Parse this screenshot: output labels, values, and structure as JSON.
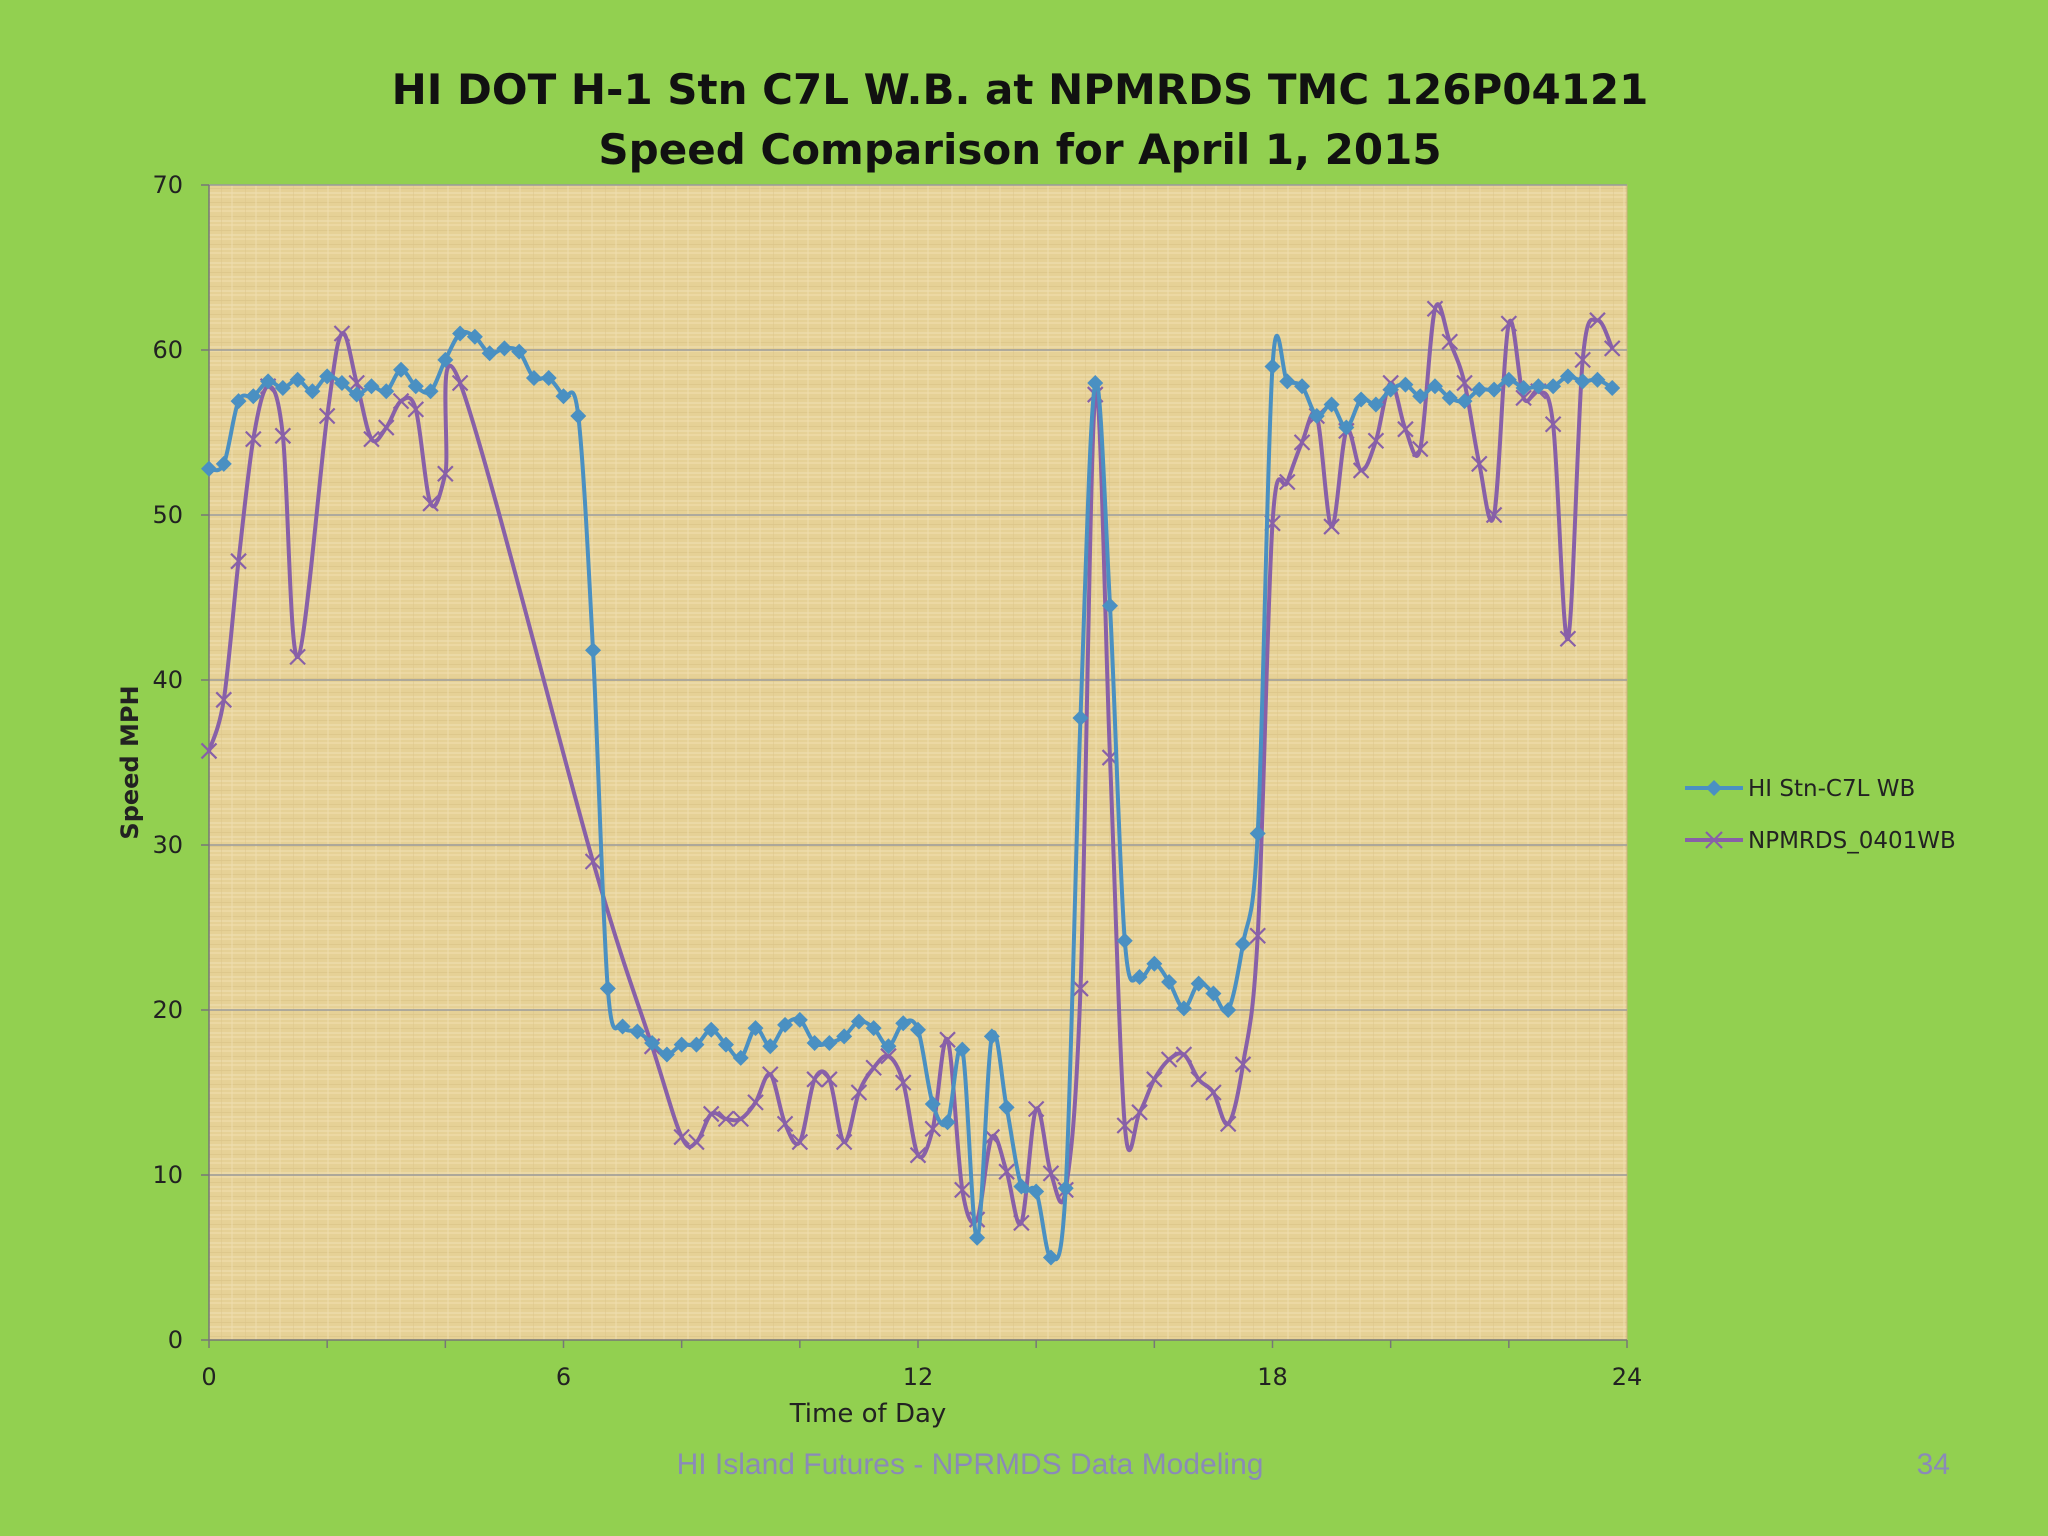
{
  "slide": {
    "footer": "HI Island Futures - NPRMDS Data Modeling",
    "page_number": "34"
  },
  "colors": {
    "background": "#92d050",
    "plot_area": "#e8d39c",
    "gridline": "#9a9a9a",
    "series_1": "#4a90c2",
    "series_2": "#8860a8"
  },
  "chart_data": {
    "type": "line",
    "title_lines": [
      "HI DOT H-1 Stn C7L W.B. at NPMRDS TMC 126P04121",
      "Speed Comparison for April 1, 2015"
    ],
    "xlabel": "Time of Day",
    "ylabel": "Speed MPH",
    "xlim": [
      0,
      24
    ],
    "ylim": [
      0,
      70
    ],
    "xticks": [
      0,
      6,
      12,
      18,
      24
    ],
    "yticks": [
      0,
      10,
      20,
      30,
      40,
      50,
      60,
      70
    ],
    "grid": "horizontal",
    "legend_position": "right",
    "series": [
      {
        "name": "HI Stn-C7L WB",
        "marker": "diamond",
        "points": [
          [
            0,
            52.8
          ],
          [
            0.25,
            53.1
          ],
          [
            0.5,
            56.9
          ],
          [
            0.75,
            57.2
          ],
          [
            1,
            58.1
          ],
          [
            1.25,
            57.7
          ],
          [
            1.5,
            58.2
          ],
          [
            1.75,
            57.5
          ],
          [
            2,
            58.4
          ],
          [
            2.25,
            58.0
          ],
          [
            2.5,
            57.3
          ],
          [
            2.75,
            57.8
          ],
          [
            3,
            57.5
          ],
          [
            3.25,
            58.8
          ],
          [
            3.5,
            57.8
          ],
          [
            3.75,
            57.5
          ],
          [
            4,
            59.4
          ],
          [
            4.25,
            61.0
          ],
          [
            4.5,
            60.8
          ],
          [
            4.75,
            59.8
          ],
          [
            5,
            60.1
          ],
          [
            5.25,
            59.9
          ],
          [
            5.5,
            58.3
          ],
          [
            5.75,
            58.3
          ],
          [
            6,
            57.2
          ],
          [
            6.25,
            56.0
          ],
          [
            6.5,
            41.8
          ],
          [
            6.75,
            21.3
          ],
          [
            7,
            19.0
          ],
          [
            7.25,
            18.7
          ],
          [
            7.5,
            18.0
          ],
          [
            7.75,
            17.3
          ],
          [
            8,
            17.9
          ],
          [
            8.25,
            17.9
          ],
          [
            8.5,
            18.8
          ],
          [
            8.75,
            17.9
          ],
          [
            9,
            17.1
          ],
          [
            9.25,
            18.9
          ],
          [
            9.5,
            17.8
          ],
          [
            9.75,
            19.1
          ],
          [
            10,
            19.4
          ],
          [
            10.25,
            18.0
          ],
          [
            10.5,
            18.0
          ],
          [
            10.75,
            18.4
          ],
          [
            11,
            19.3
          ],
          [
            11.25,
            18.9
          ],
          [
            11.5,
            17.8
          ],
          [
            11.75,
            19.2
          ],
          [
            12,
            18.8
          ],
          [
            12.25,
            14.3
          ],
          [
            12.5,
            13.2
          ],
          [
            12.75,
            17.6
          ],
          [
            13,
            6.2
          ],
          [
            13.25,
            18.4
          ],
          [
            13.5,
            14.1
          ],
          [
            13.75,
            9.3
          ],
          [
            14,
            9.0
          ],
          [
            14.25,
            5.0
          ],
          [
            14.5,
            9.2
          ],
          [
            14.75,
            37.7
          ],
          [
            15,
            58.0
          ],
          [
            15.25,
            44.5
          ],
          [
            15.5,
            24.2
          ],
          [
            15.75,
            22.0
          ],
          [
            16,
            22.8
          ],
          [
            16.25,
            21.7
          ],
          [
            16.5,
            20.1
          ],
          [
            16.75,
            21.6
          ],
          [
            17,
            21.0
          ],
          [
            17.25,
            20.0
          ],
          [
            17.5,
            24.0
          ],
          [
            17.75,
            30.7
          ],
          [
            18,
            59.0
          ],
          [
            18.25,
            58.1
          ],
          [
            18.5,
            57.8
          ],
          [
            18.75,
            56.0
          ],
          [
            19,
            56.7
          ],
          [
            19.25,
            55.3
          ],
          [
            19.5,
            57.0
          ],
          [
            19.75,
            56.7
          ],
          [
            20,
            57.6
          ],
          [
            20.25,
            57.9
          ],
          [
            20.5,
            57.2
          ],
          [
            20.75,
            57.8
          ],
          [
            21,
            57.1
          ],
          [
            21.25,
            56.9
          ],
          [
            21.5,
            57.6
          ],
          [
            21.75,
            57.6
          ],
          [
            22,
            58.2
          ],
          [
            22.25,
            57.7
          ],
          [
            22.5,
            57.8
          ],
          [
            22.75,
            57.8
          ],
          [
            23,
            58.4
          ],
          [
            23.25,
            58.1
          ],
          [
            23.5,
            58.2
          ],
          [
            23.75,
            57.7
          ]
        ]
      },
      {
        "name": "NPMRDS_0401WB",
        "marker": "x",
        "points": [
          [
            0,
            35.7
          ],
          [
            0.25,
            38.8
          ],
          [
            0.5,
            47.2
          ],
          [
            0.75,
            54.6
          ],
          [
            1,
            57.8
          ],
          [
            1.25,
            54.8
          ],
          [
            1.5,
            41.4
          ],
          [
            2,
            56.0
          ],
          [
            2.25,
            61.0
          ],
          [
            2.5,
            58.0
          ],
          [
            2.75,
            54.6
          ],
          [
            3,
            55.3
          ],
          [
            3.25,
            56.9
          ],
          [
            3.5,
            56.4
          ],
          [
            3.75,
            50.7
          ],
          [
            4,
            52.5
          ],
          [
            4.25,
            58.0
          ],
          [
            6.5,
            29.0
          ],
          [
            7.5,
            17.8
          ],
          [
            8,
            12.3
          ],
          [
            8.25,
            12.0
          ],
          [
            8.5,
            13.7
          ],
          [
            8.75,
            13.4
          ],
          [
            9,
            13.4
          ],
          [
            9.25,
            14.4
          ],
          [
            9.5,
            16.1
          ],
          [
            9.75,
            13.1
          ],
          [
            10,
            12.0
          ],
          [
            10.25,
            15.8
          ],
          [
            10.5,
            15.8
          ],
          [
            10.75,
            12.0
          ],
          [
            11,
            15.0
          ],
          [
            11.25,
            16.5
          ],
          [
            11.5,
            17.2
          ],
          [
            11.75,
            15.6
          ],
          [
            12,
            11.2
          ],
          [
            12.25,
            12.8
          ],
          [
            12.5,
            18.2
          ],
          [
            12.75,
            9.1
          ],
          [
            13,
            7.3
          ],
          [
            13.25,
            12.3
          ],
          [
            13.5,
            10.2
          ],
          [
            13.75,
            7.1
          ],
          [
            14,
            14.0
          ],
          [
            14.25,
            10.1
          ],
          [
            14.5,
            9.1
          ],
          [
            14.75,
            21.3
          ],
          [
            15,
            57.3
          ],
          [
            15.25,
            35.3
          ],
          [
            15.5,
            13.0
          ],
          [
            15.75,
            13.8
          ],
          [
            16,
            15.8
          ],
          [
            16.25,
            17.0
          ],
          [
            16.5,
            17.3
          ],
          [
            16.75,
            15.8
          ],
          [
            17,
            15.0
          ],
          [
            17.25,
            13.1
          ],
          [
            17.5,
            16.7
          ],
          [
            17.75,
            24.5
          ],
          [
            18,
            49.5
          ],
          [
            18.25,
            52.0
          ],
          [
            18.5,
            54.4
          ],
          [
            18.75,
            56.0
          ],
          [
            19,
            49.3
          ],
          [
            19.25,
            55.1
          ],
          [
            19.5,
            52.7
          ],
          [
            19.75,
            54.5
          ],
          [
            20,
            58.0
          ],
          [
            20.25,
            55.2
          ],
          [
            20.5,
            54.0
          ],
          [
            20.75,
            62.5
          ],
          [
            21,
            60.5
          ],
          [
            21.25,
            58.0
          ],
          [
            21.5,
            53.1
          ],
          [
            21.75,
            50.0
          ],
          [
            22,
            61.6
          ],
          [
            22.25,
            57.1
          ],
          [
            22.5,
            57.5
          ],
          [
            22.75,
            55.5
          ],
          [
            23,
            42.5
          ],
          [
            23.25,
            59.4
          ],
          [
            23.5,
            61.8
          ],
          [
            23.75,
            60.1
          ]
        ]
      }
    ]
  }
}
